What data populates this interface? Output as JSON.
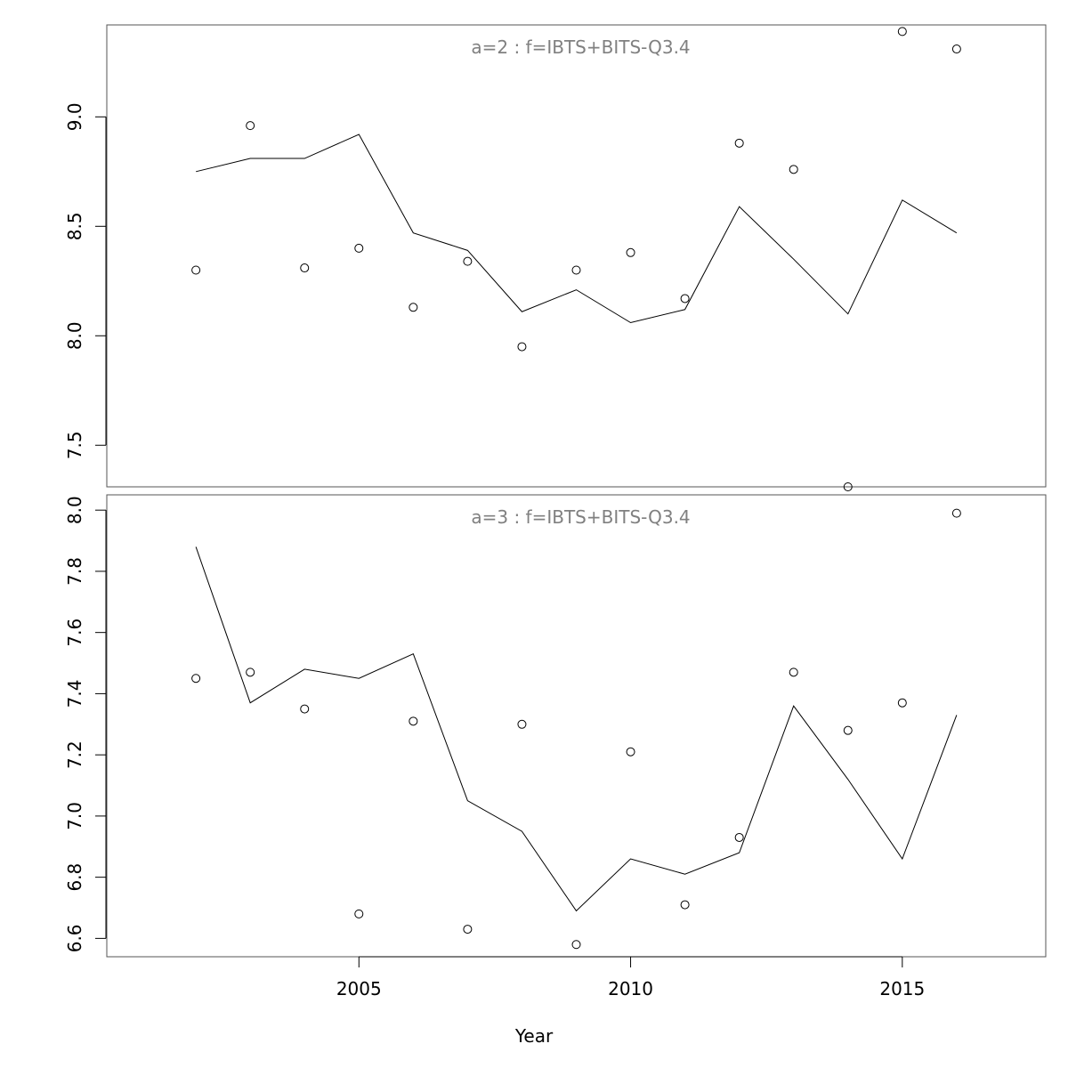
{
  "chart_data": [
    {
      "type": "line",
      "title": "a=2  :  f=IBTS+BITS-Q3.4",
      "ylim": [
        7.31,
        9.42
      ],
      "y_ticks": [
        7.5,
        8.0,
        8.5,
        9.0
      ],
      "y_tick_labels": [
        "7.5",
        "8.0",
        "8.5",
        "9.0"
      ],
      "x": [
        2002,
        2003,
        2004,
        2005,
        2006,
        2007,
        2008,
        2009,
        2010,
        2011,
        2012,
        2013,
        2014,
        2015,
        2016
      ],
      "series": [
        {
          "kind": "line",
          "values": [
            8.75,
            8.81,
            8.81,
            8.92,
            8.47,
            8.39,
            8.11,
            8.21,
            8.06,
            8.12,
            8.59,
            8.35,
            8.1,
            8.62,
            8.47
          ]
        },
        {
          "kind": "points",
          "values": [
            8.3,
            8.96,
            8.31,
            8.4,
            8.13,
            8.34,
            7.95,
            8.3,
            8.38,
            8.17,
            8.88,
            8.76,
            7.31,
            9.39,
            9.31
          ]
        }
      ]
    },
    {
      "type": "line",
      "title": "a=3  :  f=IBTS+BITS-Q3.4",
      "ylim": [
        6.54,
        8.05
      ],
      "y_ticks": [
        6.6,
        6.8,
        7.0,
        7.2,
        7.4,
        7.6,
        7.8,
        8.0
      ],
      "y_tick_labels": [
        "6.6",
        "6.8",
        "7.0",
        "7.2",
        "7.4",
        "7.6",
        "7.8",
        "8.0"
      ],
      "x": [
        2002,
        2003,
        2004,
        2005,
        2006,
        2007,
        2008,
        2009,
        2010,
        2011,
        2012,
        2013,
        2014,
        2015,
        2016
      ],
      "series": [
        {
          "kind": "line",
          "values": [
            7.88,
            7.37,
            7.48,
            7.45,
            7.53,
            7.05,
            6.95,
            6.69,
            6.86,
            6.81,
            6.88,
            7.36,
            7.12,
            6.86,
            7.33
          ]
        },
        {
          "kind": "points",
          "values": [
            7.45,
            7.47,
            7.35,
            6.68,
            7.31,
            6.63,
            7.3,
            6.58,
            7.21,
            6.71,
            6.93,
            7.47,
            7.28,
            7.37,
            7.99
          ]
        }
      ]
    }
  ],
  "x_axis": {
    "xlim": [
      2000.36,
      2017.64
    ],
    "ticks": [
      2005,
      2010,
      2015
    ],
    "tick_labels": [
      "2005",
      "2010",
      "2015"
    ],
    "label": "Year"
  },
  "colors": {
    "line": "#000000",
    "points": "#000000",
    "panel_title": "#808080",
    "frame": "#555555"
  }
}
